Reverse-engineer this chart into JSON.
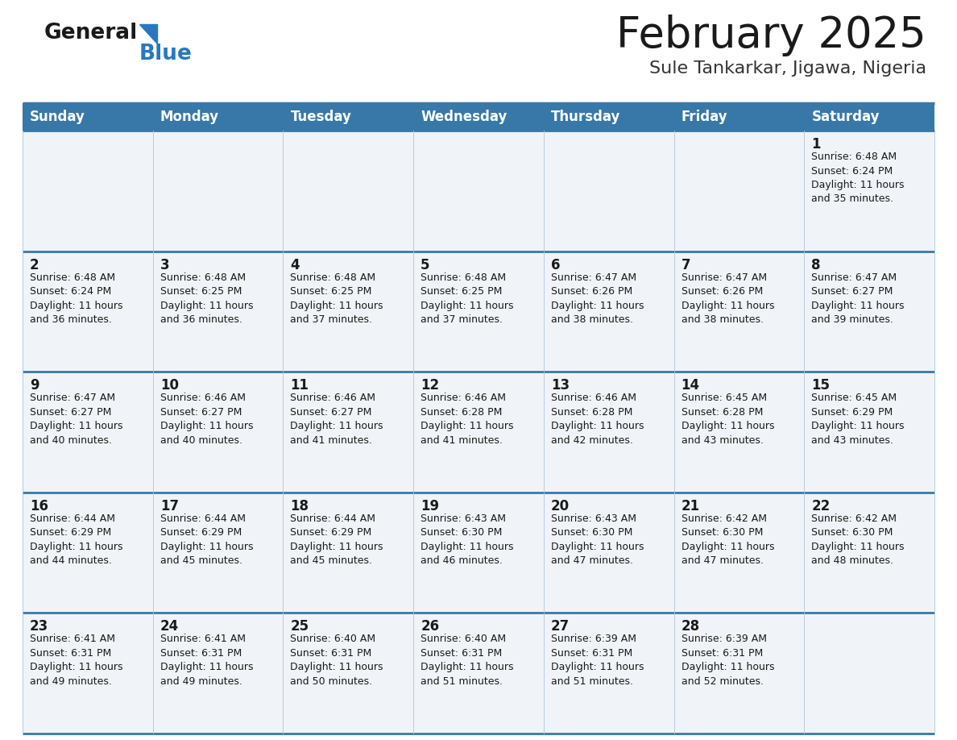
{
  "title": "February 2025",
  "subtitle": "Sule Tankarkar, Jigawa, Nigeria",
  "days_of_week": [
    "Sunday",
    "Monday",
    "Tuesday",
    "Wednesday",
    "Thursday",
    "Friday",
    "Saturday"
  ],
  "header_bg": "#3878a8",
  "header_text": "#ffffff",
  "cell_bg": "#f0f4f8",
  "separator_color": "#3878a8",
  "grid_color": "#b0c4d8",
  "title_color": "#1a1a1a",
  "subtitle_color": "#333333",
  "text_color": "#1a1a1a",
  "logo_general_color": "#1a1a1a",
  "logo_blue_color": "#2878be",
  "calendar_data": [
    [
      {
        "day": null,
        "info": null
      },
      {
        "day": null,
        "info": null
      },
      {
        "day": null,
        "info": null
      },
      {
        "day": null,
        "info": null
      },
      {
        "day": null,
        "info": null
      },
      {
        "day": null,
        "info": null
      },
      {
        "day": 1,
        "info": "Sunrise: 6:48 AM\nSunset: 6:24 PM\nDaylight: 11 hours\nand 35 minutes."
      }
    ],
    [
      {
        "day": 2,
        "info": "Sunrise: 6:48 AM\nSunset: 6:24 PM\nDaylight: 11 hours\nand 36 minutes."
      },
      {
        "day": 3,
        "info": "Sunrise: 6:48 AM\nSunset: 6:25 PM\nDaylight: 11 hours\nand 36 minutes."
      },
      {
        "day": 4,
        "info": "Sunrise: 6:48 AM\nSunset: 6:25 PM\nDaylight: 11 hours\nand 37 minutes."
      },
      {
        "day": 5,
        "info": "Sunrise: 6:48 AM\nSunset: 6:25 PM\nDaylight: 11 hours\nand 37 minutes."
      },
      {
        "day": 6,
        "info": "Sunrise: 6:47 AM\nSunset: 6:26 PM\nDaylight: 11 hours\nand 38 minutes."
      },
      {
        "day": 7,
        "info": "Sunrise: 6:47 AM\nSunset: 6:26 PM\nDaylight: 11 hours\nand 38 minutes."
      },
      {
        "day": 8,
        "info": "Sunrise: 6:47 AM\nSunset: 6:27 PM\nDaylight: 11 hours\nand 39 minutes."
      }
    ],
    [
      {
        "day": 9,
        "info": "Sunrise: 6:47 AM\nSunset: 6:27 PM\nDaylight: 11 hours\nand 40 minutes."
      },
      {
        "day": 10,
        "info": "Sunrise: 6:46 AM\nSunset: 6:27 PM\nDaylight: 11 hours\nand 40 minutes."
      },
      {
        "day": 11,
        "info": "Sunrise: 6:46 AM\nSunset: 6:27 PM\nDaylight: 11 hours\nand 41 minutes."
      },
      {
        "day": 12,
        "info": "Sunrise: 6:46 AM\nSunset: 6:28 PM\nDaylight: 11 hours\nand 41 minutes."
      },
      {
        "day": 13,
        "info": "Sunrise: 6:46 AM\nSunset: 6:28 PM\nDaylight: 11 hours\nand 42 minutes."
      },
      {
        "day": 14,
        "info": "Sunrise: 6:45 AM\nSunset: 6:28 PM\nDaylight: 11 hours\nand 43 minutes."
      },
      {
        "day": 15,
        "info": "Sunrise: 6:45 AM\nSunset: 6:29 PM\nDaylight: 11 hours\nand 43 minutes."
      }
    ],
    [
      {
        "day": 16,
        "info": "Sunrise: 6:44 AM\nSunset: 6:29 PM\nDaylight: 11 hours\nand 44 minutes."
      },
      {
        "day": 17,
        "info": "Sunrise: 6:44 AM\nSunset: 6:29 PM\nDaylight: 11 hours\nand 45 minutes."
      },
      {
        "day": 18,
        "info": "Sunrise: 6:44 AM\nSunset: 6:29 PM\nDaylight: 11 hours\nand 45 minutes."
      },
      {
        "day": 19,
        "info": "Sunrise: 6:43 AM\nSunset: 6:30 PM\nDaylight: 11 hours\nand 46 minutes."
      },
      {
        "day": 20,
        "info": "Sunrise: 6:43 AM\nSunset: 6:30 PM\nDaylight: 11 hours\nand 47 minutes."
      },
      {
        "day": 21,
        "info": "Sunrise: 6:42 AM\nSunset: 6:30 PM\nDaylight: 11 hours\nand 47 minutes."
      },
      {
        "day": 22,
        "info": "Sunrise: 6:42 AM\nSunset: 6:30 PM\nDaylight: 11 hours\nand 48 minutes."
      }
    ],
    [
      {
        "day": 23,
        "info": "Sunrise: 6:41 AM\nSunset: 6:31 PM\nDaylight: 11 hours\nand 49 minutes."
      },
      {
        "day": 24,
        "info": "Sunrise: 6:41 AM\nSunset: 6:31 PM\nDaylight: 11 hours\nand 49 minutes."
      },
      {
        "day": 25,
        "info": "Sunrise: 6:40 AM\nSunset: 6:31 PM\nDaylight: 11 hours\nand 50 minutes."
      },
      {
        "day": 26,
        "info": "Sunrise: 6:40 AM\nSunset: 6:31 PM\nDaylight: 11 hours\nand 51 minutes."
      },
      {
        "day": 27,
        "info": "Sunrise: 6:39 AM\nSunset: 6:31 PM\nDaylight: 11 hours\nand 51 minutes."
      },
      {
        "day": 28,
        "info": "Sunrise: 6:39 AM\nSunset: 6:31 PM\nDaylight: 11 hours\nand 52 minutes."
      },
      {
        "day": null,
        "info": null
      }
    ]
  ],
  "fig_width": 11.88,
  "fig_height": 9.18,
  "dpi": 100
}
